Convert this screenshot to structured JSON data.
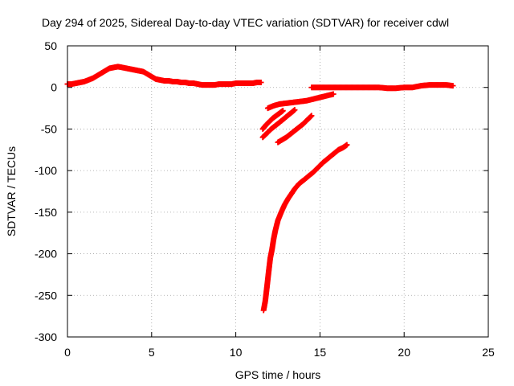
{
  "chart_data": {
    "type": "scatter",
    "title": "Day 294 of 2025, Sidereal Day-to-day VTEC variation (SDTVAR) for receiver cdwl",
    "xlabel": "GPS time / hours",
    "ylabel": "SDTVAR / TECUs",
    "xlim": [
      0,
      25
    ],
    "ylim": [
      -300,
      50
    ],
    "xticks": [
      0,
      5,
      10,
      15,
      20,
      25
    ],
    "yticks": [
      -300,
      -250,
      -200,
      -150,
      -100,
      -50,
      0,
      50
    ],
    "grid": true,
    "marker": "plus",
    "color": "#ff0000",
    "series": [
      {
        "name": "main-arc-1",
        "x": [
          0.0,
          0.25,
          0.5,
          0.75,
          1.0,
          1.25,
          1.5,
          1.75,
          2.0,
          2.25,
          2.5,
          2.75,
          3.0,
          3.25,
          3.5,
          3.75,
          4.0,
          4.25,
          4.5,
          4.75,
          5.0,
          5.25,
          5.5,
          5.75,
          6.0,
          6.25,
          6.5,
          6.75,
          7.0,
          7.25,
          7.5,
          7.75,
          8.0,
          8.25,
          8.5,
          8.75,
          9.0,
          9.25,
          9.5,
          9.75,
          10.0,
          10.25,
          10.5,
          10.75,
          11.0,
          11.25,
          11.5
        ],
        "y": [
          4,
          4,
          5,
          6,
          7,
          9,
          11,
          14,
          17,
          20,
          23,
          24,
          25,
          24,
          23,
          22,
          21,
          20,
          19,
          16,
          13,
          10,
          9,
          8,
          8,
          7,
          7,
          6,
          6,
          5,
          5,
          4,
          3,
          3,
          3,
          3,
          4,
          4,
          4,
          4,
          5,
          5,
          5,
          5,
          5,
          6,
          6
        ]
      },
      {
        "name": "main-arc-2",
        "x": [
          14.5,
          14.75,
          15.0,
          15.5,
          16.0,
          16.5,
          17.0,
          17.5,
          18.0,
          18.5,
          19.0,
          19.5,
          20.0,
          20.5,
          21.0,
          21.5,
          22.0,
          22.5,
          22.9
        ],
        "y": [
          0,
          0,
          0,
          0,
          0,
          0,
          0,
          0,
          0,
          0,
          -1,
          -1,
          0,
          0,
          2,
          3,
          3,
          3,
          2
        ]
      },
      {
        "name": "arc-a",
        "x": [
          11.9,
          12.25,
          12.6,
          13.0,
          13.4,
          13.8,
          14.2,
          14.6,
          15.0,
          15.4,
          15.8
        ],
        "y": [
          -25,
          -22,
          -20,
          -19,
          -18,
          -17,
          -16,
          -14,
          -12,
          -10,
          -8
        ]
      },
      {
        "name": "arc-b",
        "x": [
          11.6,
          11.8,
          12.0,
          12.2,
          12.4,
          12.6,
          12.8
        ],
        "y": [
          -50,
          -45,
          -41,
          -37,
          -34,
          -31,
          -28
        ]
      },
      {
        "name": "arc-c",
        "x": [
          11.6,
          11.85,
          12.1,
          12.35,
          12.6,
          12.9,
          13.2,
          13.5
        ],
        "y": [
          -60,
          -55,
          -50,
          -46,
          -42,
          -37,
          -32,
          -27
        ]
      },
      {
        "name": "arc-d",
        "x": [
          12.5,
          12.75,
          13.0,
          13.25,
          13.5,
          13.75,
          14.0,
          14.25,
          14.5
        ],
        "y": [
          -66,
          -63,
          -60,
          -56,
          -52,
          -48,
          -44,
          -39,
          -34
        ]
      },
      {
        "name": "arc-e",
        "x": [
          11.65,
          11.75,
          11.85,
          11.95,
          12.05,
          12.15,
          12.25,
          12.35,
          12.5,
          12.7,
          12.9,
          13.1,
          13.3,
          13.5,
          13.75,
          14.0,
          14.3,
          14.6,
          14.9,
          15.2,
          15.5,
          15.8,
          16.1,
          16.4,
          16.6
        ],
        "y": [
          -268,
          -257,
          -240,
          -222,
          -205,
          -195,
          -182,
          -172,
          -160,
          -150,
          -141,
          -134,
          -128,
          -122,
          -116,
          -112,
          -107,
          -102,
          -96,
          -90,
          -85,
          -80,
          -75,
          -72,
          -69
        ]
      }
    ]
  }
}
